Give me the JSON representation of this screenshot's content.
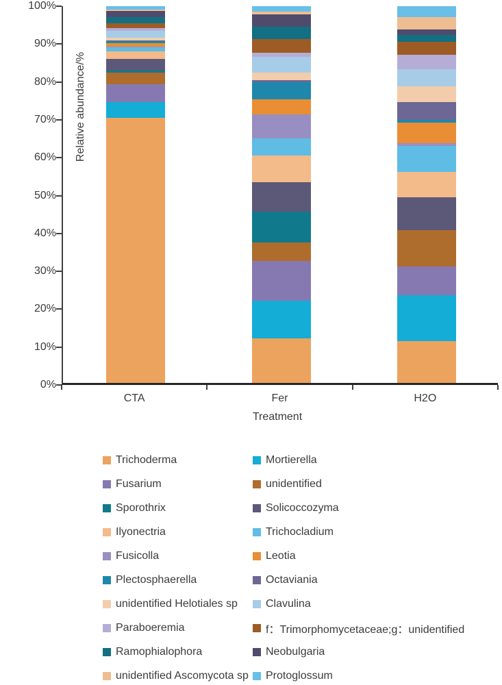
{
  "chart_data": {
    "type": "bar",
    "stacked": true,
    "title": "",
    "xlabel": "Treatment",
    "ylabel": "Relative abundance/%",
    "categories": [
      "CTA",
      "Fer",
      "H2O"
    ],
    "y_axis": {
      "min": 0,
      "max": 100,
      "step": 10,
      "tick_labels": [
        "0%",
        "10%",
        "20%",
        "30%",
        "40%",
        "50%",
        "60%",
        "70%",
        "80%",
        "90%",
        "100%"
      ],
      "grid": false
    },
    "legend": {
      "position": "bottom",
      "columns": 2
    },
    "series": [
      {
        "name": "Trichoderma",
        "color": "#ECA35E",
        "values": [
          70.5,
          11.8,
          11.0
        ]
      },
      {
        "name": "Mortierella",
        "color": "#13ADD6",
        "values": [
          4.2,
          10.0,
          12.3
        ]
      },
      {
        "name": "Fusarium",
        "color": "#8679B2",
        "values": [
          4.9,
          10.5,
          7.5
        ]
      },
      {
        "name": "unidentified",
        "color": "#AE6D2D",
        "values": [
          3.1,
          5.0,
          9.6
        ]
      },
      {
        "name": "Sporothrix",
        "color": "#107A8C",
        "values": [
          0.4,
          8.1,
          0.1
        ]
      },
      {
        "name": "Solicoccozyma",
        "color": "#5C5878",
        "values": [
          3.1,
          7.8,
          8.7
        ]
      },
      {
        "name": "Ilyonectria",
        "color": "#F3BA8A",
        "values": [
          2.0,
          7.2,
          6.6
        ]
      },
      {
        "name": "Trichocladium",
        "color": "#5FBCE4",
        "values": [
          1.2,
          4.5,
          6.9
        ]
      },
      {
        "name": "Fusicolla",
        "color": "#998EC1",
        "values": [
          0.1,
          6.3,
          0.9
        ]
      },
      {
        "name": "Leotia",
        "color": "#E98E35",
        "values": [
          0.9,
          4.0,
          5.4
        ]
      },
      {
        "name": "Plectosphaerella",
        "color": "#1F87AC",
        "values": [
          0.6,
          4.7,
          0.6
        ]
      },
      {
        "name": "Octaviania",
        "color": "#6C6794",
        "values": [
          0.1,
          0.4,
          4.8
        ]
      },
      {
        "name": "unidentified Helotiales sp",
        "color": "#F3CDAB",
        "values": [
          0.9,
          2.0,
          4.2
        ]
      },
      {
        "name": "Clavulina",
        "color": "#A6CCE8",
        "values": [
          1.8,
          4.2,
          4.5
        ]
      },
      {
        "name": "Paraboeremia",
        "color": "#B5ADD5",
        "values": [
          0.7,
          1.2,
          3.9
        ]
      },
      {
        "name": "f：Trimorphomycetaceae;g：unidentified",
        "color": "#9D5B26",
        "values": [
          1.2,
          3.6,
          3.3
        ]
      },
      {
        "name": "Ramophialophora",
        "color": "#136F82",
        "values": [
          1.6,
          3.3,
          1.8
        ]
      },
      {
        "name": "Neobulgaria",
        "color": "#4F4B6D",
        "values": [
          1.7,
          3.3,
          1.5
        ]
      },
      {
        "name": "unidentified Ascomycota sp",
        "color": "#EFBD92",
        "values": [
          0.4,
          0.7,
          3.3
        ]
      },
      {
        "name": "Protoglossum",
        "color": "#69BFE7",
        "values": [
          0.9,
          1.4,
          2.9
        ]
      }
    ]
  }
}
